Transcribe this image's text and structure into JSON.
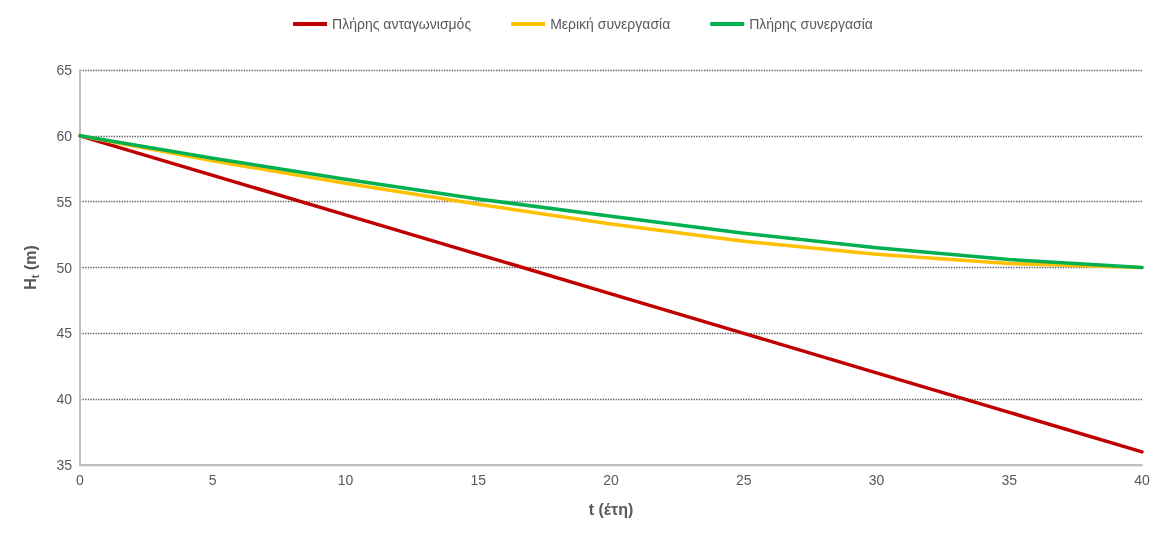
{
  "chart_data": {
    "type": "line",
    "xlabel": "t (έτη)",
    "ylabel": "H$_{t}$ (m)",
    "x": [
      0,
      5,
      10,
      15,
      20,
      25,
      30,
      35,
      40
    ],
    "series": [
      {
        "name": "Πλήρης ανταγωνισμός",
        "color": "#c00000",
        "values": [
          60,
          57,
          54,
          51,
          48,
          45,
          42,
          39,
          36
        ]
      },
      {
        "name": "Μερική συνεργασία",
        "color": "#ffc000",
        "values": [
          60,
          58.1,
          56.4,
          54.8,
          53.3,
          52.0,
          51.0,
          50.3,
          50.0
        ]
      },
      {
        "name": "Πλήρης συνεργασία",
        "color": "#00b050",
        "values": [
          60,
          58.3,
          56.7,
          55.2,
          53.9,
          52.6,
          51.5,
          50.6,
          50.0
        ]
      }
    ],
    "xlim": [
      0,
      40
    ],
    "xticks": [
      0,
      5,
      10,
      15,
      20,
      25,
      30,
      35,
      40
    ],
    "ylim": [
      35,
      65
    ],
    "yticks": [
      35,
      40,
      45,
      50,
      55,
      60,
      65
    ],
    "grid": "y",
    "legend": "top",
    "marker": "none",
    "line_style": "solid"
  }
}
